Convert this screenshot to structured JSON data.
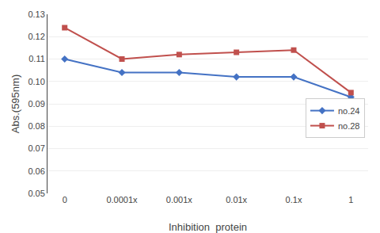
{
  "chart_data": {
    "type": "line",
    "xlabel": "Inhibition  protein",
    "ylabel": "Abs.(595nm)",
    "categories": [
      "0",
      "0.0001x",
      "0.001x",
      "0.01x",
      "0.1x",
      "1"
    ],
    "series": [
      {
        "name": "no.24",
        "color": "#4472C4",
        "marker": "diamond",
        "values": [
          0.11,
          0.104,
          0.104,
          0.102,
          0.102,
          0.093
        ]
      },
      {
        "name": "no.28",
        "color": "#C0504D",
        "marker": "square",
        "values": [
          0.124,
          0.11,
          0.112,
          0.113,
          0.114,
          0.095
        ]
      }
    ],
    "ylim": [
      0.05,
      0.13
    ],
    "yticks": [
      0.05,
      0.06,
      0.07,
      0.08,
      0.09,
      {
        "value": 0.1,
        "label": "0.10"
      },
      0.11,
      0.12,
      0.13
    ],
    "grid": true,
    "legend": "center right"
  }
}
